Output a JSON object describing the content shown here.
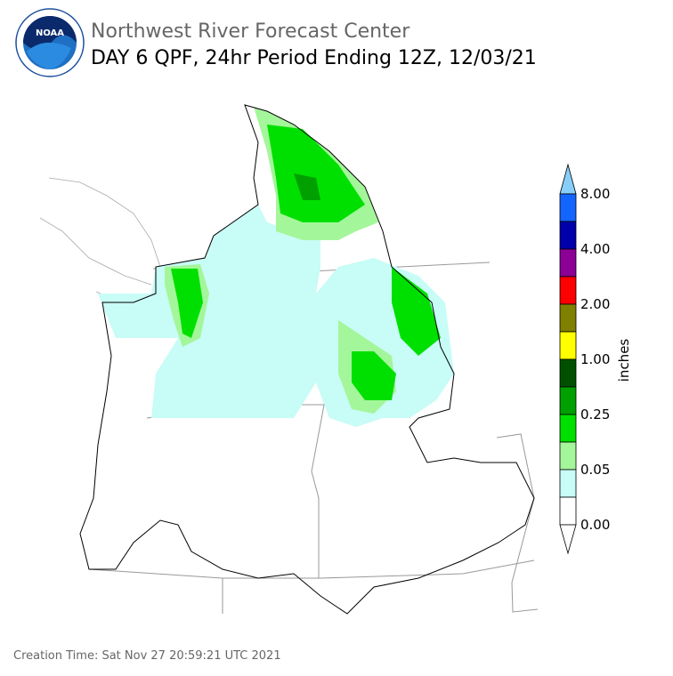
{
  "header": {
    "title": "Northwest River Forecast Center",
    "subtitle": "DAY 6 QPF, 24hr Period Ending 12Z, 12/03/21",
    "logo": "NOAA"
  },
  "legend": {
    "labels": [
      "8.00",
      "4.00",
      "2.00",
      "1.00",
      "0.25",
      "0.05",
      "0.00"
    ],
    "unit": "inches"
  },
  "footer": {
    "creation_time": "Creation Time: Sat Nov 27 20:59:21 UTC 2021"
  }
}
